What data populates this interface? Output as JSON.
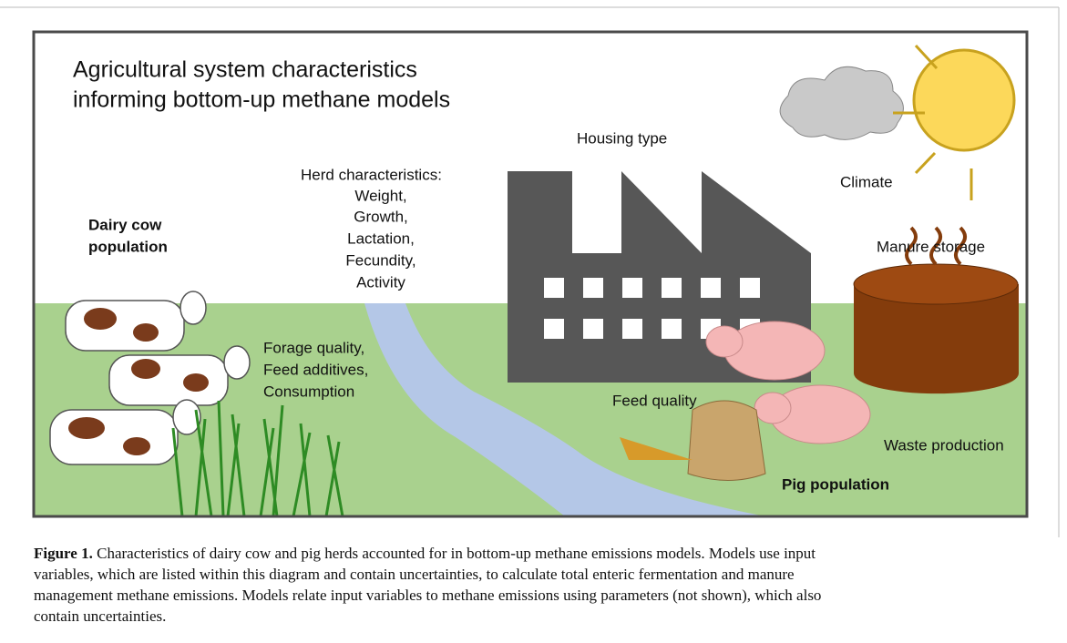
{
  "figure": {
    "title": [
      "Agricultural system characteristics",
      "informing bottom-up methane models"
    ],
    "labels": {
      "housing": "Housing type",
      "climate": "Climate",
      "herd_heading": "Herd characteristics:",
      "herd_items": [
        "Weight,",
        "Growth,",
        "Lactation,",
        "Fecundity,",
        "Activity"
      ],
      "dairy": [
        "Dairy cow",
        "population"
      ],
      "manure": "Manure storage",
      "forage": [
        "Forage quality,",
        "Feed additives,",
        "Consumption"
      ],
      "feed": "Feed quality",
      "waste": "Waste production",
      "pig": "Pig population"
    }
  },
  "caption": {
    "label": "Figure 1.",
    "lines": [
      "Characteristics of dairy cow and pig herds accounted for in bottom-up methane emissions models. Models use input",
      "variables, which are listed within this diagram and contain uncertainties, to calculate total enteric fermentation and manure",
      "management methane emissions. Models relate input variables to methane emissions using parameters (not shown), which also",
      "contain uncertainties."
    ]
  }
}
